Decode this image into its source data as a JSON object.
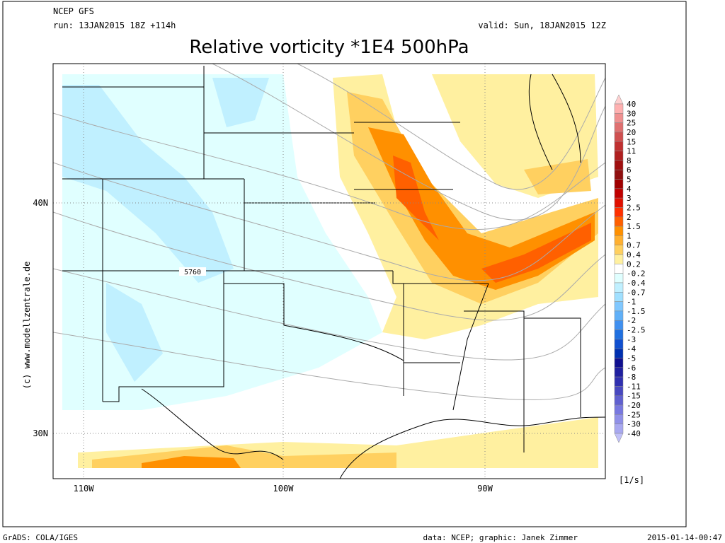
{
  "header": {
    "model": "NCEP GFS",
    "run": "run: 13JAN2015 18Z +114h",
    "valid": "valid: Sun, 18JAN2015 12Z",
    "title": "Relative vorticity *1E4 500hPa"
  },
  "map": {
    "lon_labels": [
      "110W",
      "100W",
      "90W"
    ],
    "lat_labels": [
      "40N",
      "30N"
    ],
    "contour_label": "5760",
    "side_credit": "(c) www.modellzentrale.de"
  },
  "colorbar": {
    "labels": [
      40,
      30,
      25,
      20,
      15,
      11,
      8,
      6,
      5,
      4,
      3,
      2.5,
      2,
      1.5,
      1,
      0.7,
      0.4,
      0.2,
      -0.2,
      -0.4,
      -0.7,
      -1,
      -1.5,
      -2,
      -2.5,
      -3,
      -4,
      -5,
      -6,
      -8,
      -11,
      -15,
      -20,
      -25,
      -30,
      -40
    ],
    "colors": [
      "#ffd0d0",
      "#ffb0b0",
      "#f09090",
      "#e07070",
      "#d05050",
      "#c03030",
      "#b02020",
      "#a01010",
      "#901010",
      "#a00000",
      "#c00000",
      "#e01000",
      "#ff3000",
      "#ff6000",
      "#ff9000",
      "#ffb030",
      "#ffd060",
      "#fff0a0",
      "#ffffff",
      "#e0ffff",
      "#c0f0ff",
      "#a0e0ff",
      "#80c8ff",
      "#60b0f8",
      "#4090f0",
      "#2070e0",
      "#1050d0",
      "#0030b0",
      "#101090",
      "#2020a0",
      "#3030b0",
      "#4848c0",
      "#6060d0",
      "#7878e0",
      "#9090e8",
      "#a8a8f0",
      "#c0c0f8"
    ],
    "unit": "[1/s]"
  },
  "footer": {
    "left": "GrADS: COLA/IGES",
    "center": "data: NCEP; graphic: Janek Zimmer",
    "right": "2015-01-14-00:47"
  }
}
